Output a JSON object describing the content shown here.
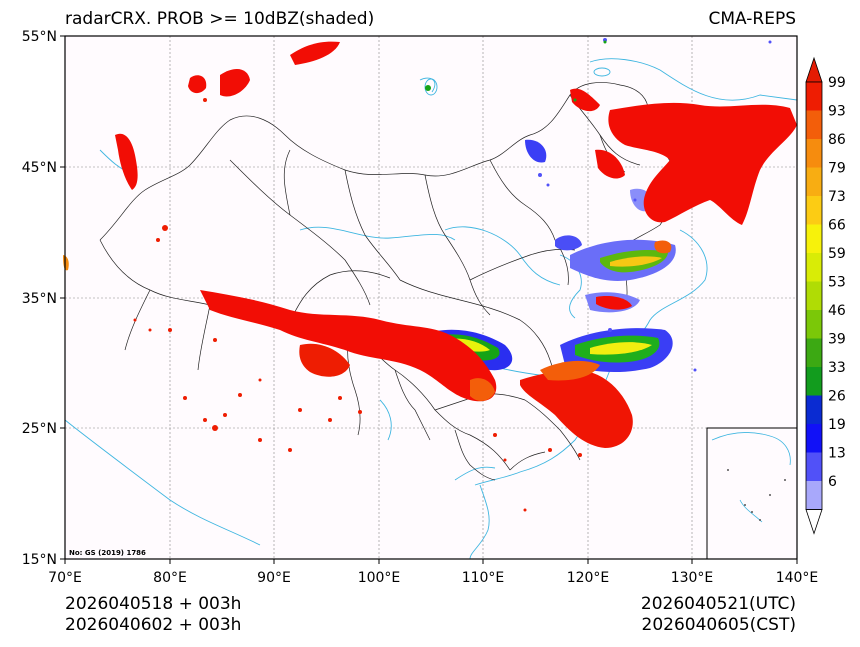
{
  "title": {
    "left": "radarCRX. PROB >= 10dBZ(shaded)",
    "right": "CMA-REPS"
  },
  "map": {
    "lon_ticks": [
      "70°E",
      "80°E",
      "90°E",
      "100°E",
      "110°E",
      "120°E",
      "130°E",
      "140°E"
    ],
    "lat_ticks": [
      "55°N",
      "45°N",
      "35°N",
      "25°N",
      "15°N"
    ],
    "note": "No: GS (2019) 1786"
  },
  "colorbar": {
    "labels": [
      "99",
      "93",
      "86",
      "79",
      "73",
      "66",
      "59",
      "53",
      "46",
      "39",
      "33",
      "26",
      "19",
      "13",
      "6"
    ],
    "colors": [
      "#ee1d02",
      "#f35e0a",
      "#f68c0e",
      "#f8ad12",
      "#fccc14",
      "#f7f20b",
      "#d9ec06",
      "#b0dc05",
      "#7bc808",
      "#3ca913",
      "#129c1e",
      "#0a2bd2",
      "#1111f7",
      "#5151f8",
      "#a8a8fb"
    ],
    "over_color": "#e41b03",
    "under_color": "#ffffff"
  },
  "footer": {
    "init_utc": "2026040518  +  003h",
    "init_cst": "2026040602  +  003h",
    "valid_utc": "2026040521(UTC)",
    "valid_cst": "2026040605(CST)"
  }
}
